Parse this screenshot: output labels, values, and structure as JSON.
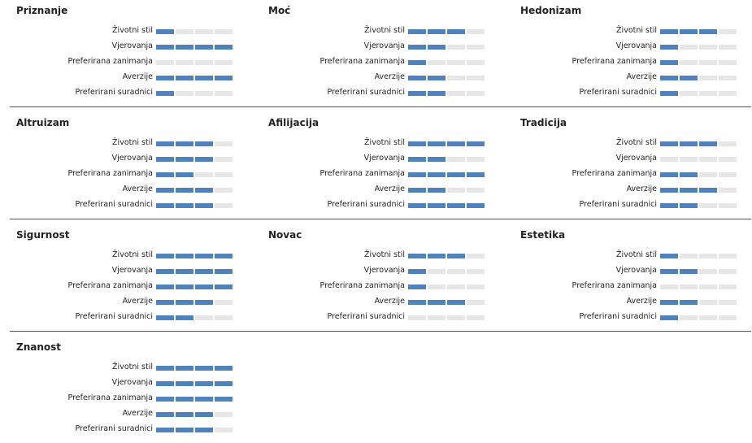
{
  "chart_data": {
    "type": "bar",
    "max_level": 4,
    "colors": {
      "filled": "#4f81bd",
      "empty": "#e6e6e6",
      "divider": "#555555"
    },
    "categories": [
      "Životni stil",
      "Vjerovanja",
      "Preferirana zanimanja",
      "Averzije",
      "Preferirani suradnici"
    ],
    "panels": [
      {
        "title": "Priznanje",
        "values": [
          1,
          4,
          0,
          4,
          1
        ]
      },
      {
        "title": "Moć",
        "values": [
          3,
          2,
          1,
          2,
          2
        ]
      },
      {
        "title": "Hedonizam",
        "values": [
          3,
          1,
          1,
          2,
          1
        ]
      },
      {
        "title": "Altruizam",
        "values": [
          3,
          3,
          2,
          3,
          3
        ]
      },
      {
        "title": "Afilijacija",
        "values": [
          4,
          2,
          4,
          2,
          4
        ]
      },
      {
        "title": "Tradicija",
        "values": [
          3,
          0,
          2,
          3,
          2
        ]
      },
      {
        "title": "Sigurnost",
        "values": [
          4,
          4,
          4,
          3,
          2
        ]
      },
      {
        "title": "Novac",
        "values": [
          3,
          1,
          1,
          3,
          0
        ]
      },
      {
        "title": "Estetika",
        "values": [
          1,
          2,
          0,
          2,
          1
        ]
      },
      {
        "title": "Znanost",
        "values": [
          4,
          4,
          4,
          3,
          3
        ]
      }
    ]
  }
}
